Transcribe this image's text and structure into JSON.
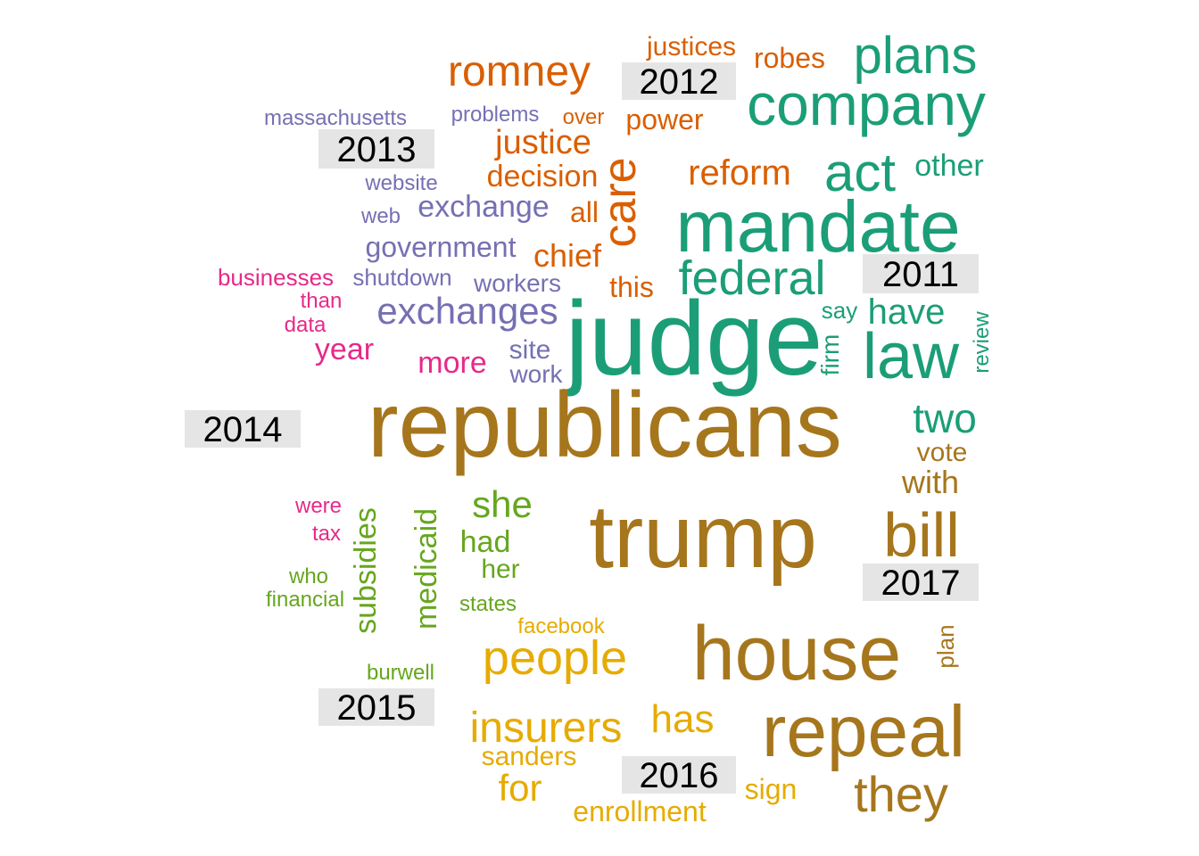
{
  "colors": {
    "2011": "#1b9e77",
    "2012": "#d95f02",
    "2013": "#7570b3",
    "2014": "#e7298a",
    "2015": "#66a61e",
    "2016": "#e6ab02",
    "2017": "#a6761d",
    "label_box": "#e5e5e5",
    "label_text": "#000000"
  },
  "year_labels": [
    "2011",
    "2012",
    "2013",
    "2014",
    "2015",
    "2016",
    "2017"
  ],
  "words": [
    {
      "text": "judge",
      "year": "2011"
    },
    {
      "text": "mandate",
      "year": "2011"
    },
    {
      "text": "company",
      "year": "2011"
    },
    {
      "text": "plans",
      "year": "2011"
    },
    {
      "text": "act",
      "year": "2011"
    },
    {
      "text": "federal",
      "year": "2011"
    },
    {
      "text": "law",
      "year": "2011"
    },
    {
      "text": "other",
      "year": "2011"
    },
    {
      "text": "have",
      "year": "2011"
    },
    {
      "text": "two",
      "year": "2011"
    },
    {
      "text": "say",
      "year": "2011"
    },
    {
      "text": "firm",
      "year": "2011"
    },
    {
      "text": "review",
      "year": "2011"
    },
    {
      "text": "romney",
      "year": "2012"
    },
    {
      "text": "justices",
      "year": "2012"
    },
    {
      "text": "robes",
      "year": "2012"
    },
    {
      "text": "over",
      "year": "2012"
    },
    {
      "text": "power",
      "year": "2012"
    },
    {
      "text": "justice",
      "year": "2012"
    },
    {
      "text": "care",
      "year": "2012"
    },
    {
      "text": "decision",
      "year": "2012"
    },
    {
      "text": "reform",
      "year": "2012"
    },
    {
      "text": "all",
      "year": "2012"
    },
    {
      "text": "chief",
      "year": "2012"
    },
    {
      "text": "this",
      "year": "2012"
    },
    {
      "text": "massachusetts",
      "year": "2013"
    },
    {
      "text": "problems",
      "year": "2013"
    },
    {
      "text": "website",
      "year": "2013"
    },
    {
      "text": "web",
      "year": "2013"
    },
    {
      "text": "exchange",
      "year": "2013"
    },
    {
      "text": "government",
      "year": "2013"
    },
    {
      "text": "shutdown",
      "year": "2013"
    },
    {
      "text": "workers",
      "year": "2013"
    },
    {
      "text": "exchanges",
      "year": "2013"
    },
    {
      "text": "site",
      "year": "2013"
    },
    {
      "text": "work",
      "year": "2013"
    },
    {
      "text": "businesses",
      "year": "2014"
    },
    {
      "text": "than",
      "year": "2014"
    },
    {
      "text": "data",
      "year": "2014"
    },
    {
      "text": "year",
      "year": "2014"
    },
    {
      "text": "more",
      "year": "2014"
    },
    {
      "text": "were",
      "year": "2014"
    },
    {
      "text": "tax",
      "year": "2014"
    },
    {
      "text": "subsidies",
      "year": "2015"
    },
    {
      "text": "medicaid",
      "year": "2015"
    },
    {
      "text": "she",
      "year": "2015"
    },
    {
      "text": "had",
      "year": "2015"
    },
    {
      "text": "her",
      "year": "2015"
    },
    {
      "text": "who",
      "year": "2015"
    },
    {
      "text": "financial",
      "year": "2015"
    },
    {
      "text": "states",
      "year": "2015"
    },
    {
      "text": "burwell",
      "year": "2015"
    },
    {
      "text": "facebook",
      "year": "2016"
    },
    {
      "text": "people",
      "year": "2016"
    },
    {
      "text": "insurers",
      "year": "2016"
    },
    {
      "text": "has",
      "year": "2016"
    },
    {
      "text": "sanders",
      "year": "2016"
    },
    {
      "text": "for",
      "year": "2016"
    },
    {
      "text": "enrollment",
      "year": "2016"
    },
    {
      "text": "sign",
      "year": "2016"
    },
    {
      "text": "republicans",
      "year": "2017"
    },
    {
      "text": "trump",
      "year": "2017"
    },
    {
      "text": "house",
      "year": "2017"
    },
    {
      "text": "repeal",
      "year": "2017"
    },
    {
      "text": "bill",
      "year": "2017"
    },
    {
      "text": "they",
      "year": "2017"
    },
    {
      "text": "vote",
      "year": "2017"
    },
    {
      "text": "with",
      "year": "2017"
    },
    {
      "text": "plan",
      "year": "2017"
    }
  ]
}
